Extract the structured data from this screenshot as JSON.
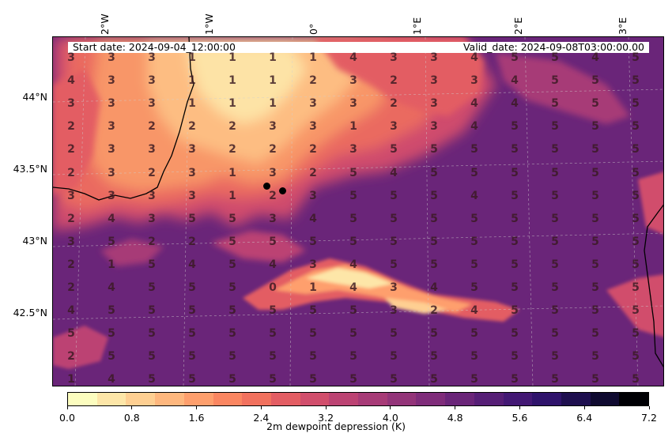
{
  "map": {
    "start_date": "Start date: 2024-09-04_12:00:00",
    "valid_date": "Valid_date: 2024-09-08T03:00:00.00",
    "lon_ticks": [
      "2°W",
      "1°W",
      "0°",
      "1°E",
      "2°E",
      "3°E"
    ],
    "lat_ticks": [
      "44°N",
      "43.5°N",
      "43°N",
      "42.5°N"
    ],
    "grid_values": [
      [
        3,
        3,
        3,
        1,
        1,
        1,
        1,
        4,
        3,
        3,
        4,
        5,
        5,
        4,
        5
      ],
      [
        4,
        3,
        3,
        1,
        1,
        1,
        2,
        3,
        2,
        3,
        3,
        4,
        5,
        5,
        5
      ],
      [
        3,
        3,
        3,
        1,
        1,
        1,
        3,
        3,
        2,
        3,
        4,
        4,
        5,
        5,
        5
      ],
      [
        2,
        3,
        2,
        2,
        2,
        3,
        3,
        1,
        3,
        3,
        4,
        5,
        5,
        5,
        5
      ],
      [
        2,
        3,
        3,
        3,
        2,
        2,
        2,
        3,
        5,
        5,
        5,
        5,
        5,
        5,
        5
      ],
      [
        2,
        3,
        2,
        3,
        1,
        3,
        2,
        5,
        4,
        5,
        5,
        5,
        5,
        5,
        5
      ],
      [
        3,
        3,
        3,
        3,
        1,
        2,
        3,
        5,
        5,
        5,
        4,
        5,
        5,
        5,
        5
      ],
      [
        2,
        4,
        3,
        5,
        5,
        3,
        4,
        5,
        5,
        5,
        5,
        5,
        5,
        5,
        5
      ],
      [
        3,
        5,
        2,
        2,
        5,
        5,
        5,
        5,
        5,
        5,
        5,
        5,
        5,
        5,
        5
      ],
      [
        2,
        1,
        5,
        4,
        5,
        4,
        3,
        4,
        5,
        5,
        5,
        5,
        5,
        5,
        5
      ],
      [
        2,
        4,
        5,
        5,
        5,
        0,
        1,
        4,
        3,
        4,
        5,
        5,
        5,
        5,
        5
      ],
      [
        4,
        5,
        5,
        5,
        5,
        5,
        5,
        5,
        3,
        2,
        4,
        5,
        5,
        5,
        5
      ],
      [
        5,
        5,
        5,
        5,
        5,
        5,
        5,
        5,
        5,
        5,
        5,
        5,
        5,
        5,
        5
      ],
      [
        2,
        5,
        5,
        5,
        5,
        5,
        5,
        5,
        5,
        5,
        5,
        5,
        5,
        5,
        5
      ],
      [
        1,
        4,
        5,
        5,
        5,
        5,
        5,
        5,
        5,
        5,
        5,
        5,
        5,
        5,
        5
      ]
    ],
    "markers": [
      {
        "lon": -0.45,
        "lat": 43.38
      },
      {
        "lon": -0.3,
        "lat": 43.35
      }
    ]
  },
  "colorbar": {
    "label": "2m dewpoint depression (K)",
    "min": 0.0,
    "max": 7.2,
    "ticks": [
      "0.0",
      "0.8",
      "1.6",
      "2.4",
      "3.2",
      "4.0",
      "4.8",
      "5.6",
      "6.4",
      "7.2"
    ],
    "colormap": "magma_r",
    "colors": [
      "#fcfdbf",
      "#fde6a8",
      "#fecf92",
      "#feb77e",
      "#fe9f6d",
      "#fa8661",
      "#f1715e",
      "#e35d63",
      "#d14e6c",
      "#bc4373",
      "#a73b77",
      "#933479",
      "#7f2c7a",
      "#6a2579",
      "#561e76",
      "#431874",
      "#2f136b",
      "#1e0f4f",
      "#0f0a30",
      "#000004"
    ]
  }
}
